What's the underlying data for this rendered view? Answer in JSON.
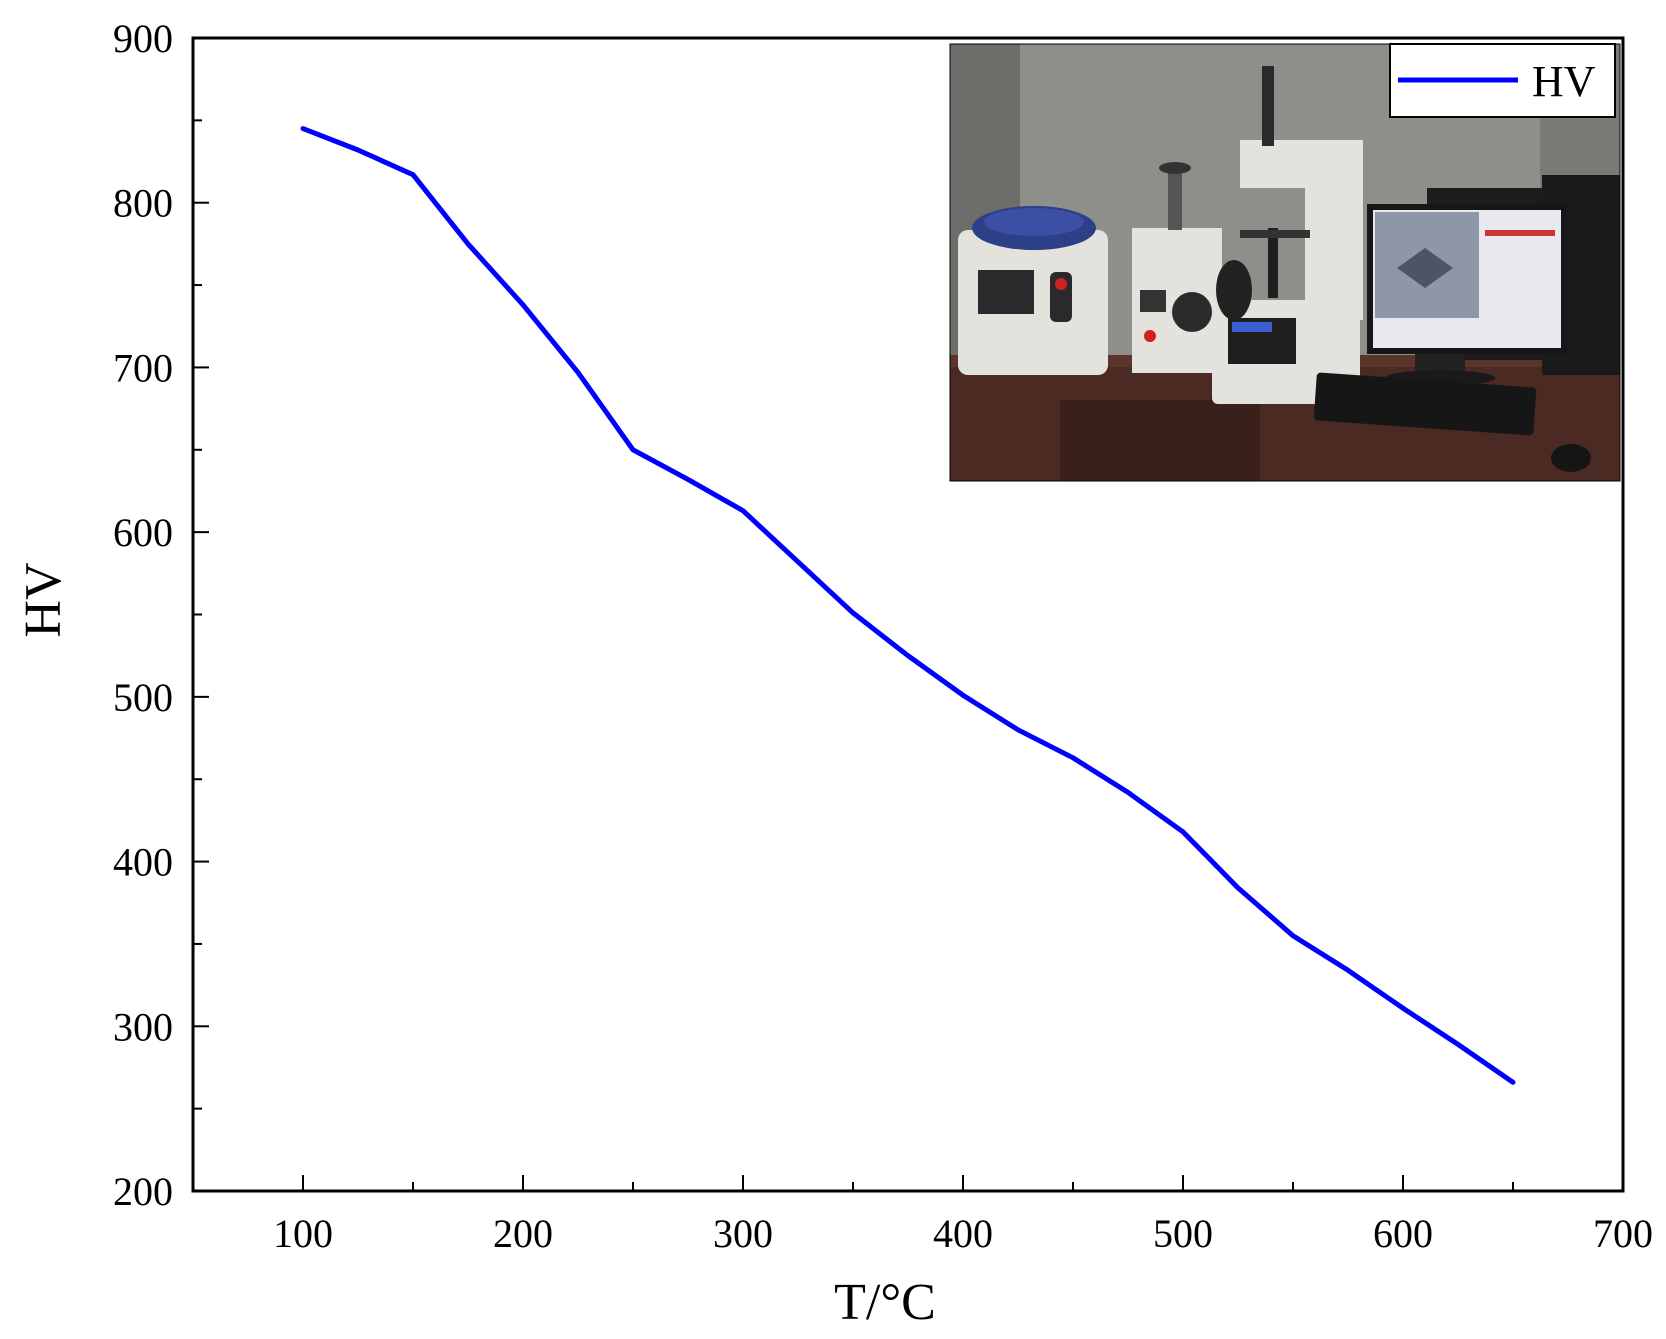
{
  "chart_data": {
    "type": "line",
    "xlabel": "T/°C",
    "ylabel": "HV",
    "xlim": [
      50,
      700
    ],
    "ylim": [
      200,
      900
    ],
    "x_ticks": [
      100,
      200,
      300,
      400,
      500,
      600,
      700
    ],
    "y_ticks": [
      200,
      300,
      400,
      500,
      600,
      700,
      800,
      900
    ],
    "grid": false,
    "legend_position": "top-right",
    "series": [
      {
        "name": "HV",
        "color": "#0000ff",
        "x": [
          100,
          125,
          150,
          175,
          200,
          225,
          250,
          275,
          300,
          325,
          350,
          375,
          400,
          425,
          450,
          475,
          500,
          525,
          550,
          575,
          600,
          625,
          650
        ],
        "y": [
          845,
          832,
          817,
          775,
          738,
          697,
          650,
          632,
          613,
          582,
          551,
          525,
          501,
          480,
          463,
          442,
          418,
          384,
          355,
          334,
          311,
          289,
          266
        ]
      }
    ],
    "inset": {
      "kind": "photo",
      "subject": "hardness-tester-lab-bench",
      "colors": {
        "wall": "#8e8e8a",
        "bench": "#4a2a22",
        "machine": "#e4e2dc",
        "lid": "#2d3f86",
        "monitor": "#1c1c1e",
        "screen": "#e8e8ee"
      }
    }
  }
}
